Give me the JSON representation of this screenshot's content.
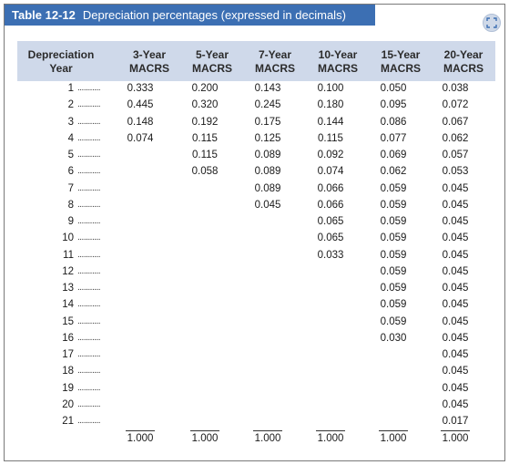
{
  "title": {
    "number": "Table 12-12",
    "text": "Depreciation percentages (expressed in decimals)"
  },
  "zoom_icon": "zoom-expand-icon",
  "columns": {
    "year": [
      "Depreciation",
      "Year"
    ],
    "macrs": [
      [
        "3-Year",
        "MACRS"
      ],
      [
        "5-Year",
        "MACRS"
      ],
      [
        "7-Year",
        "MACRS"
      ],
      [
        "10-Year",
        "MACRS"
      ],
      [
        "15-Year",
        "MACRS"
      ],
      [
        "20-Year",
        "MACRS"
      ]
    ]
  },
  "dots": "...........",
  "rows": [
    {
      "year": "1",
      "values": [
        "0.333",
        "0.200",
        "0.143",
        "0.100",
        "0.050",
        "0.038"
      ]
    },
    {
      "year": "2",
      "values": [
        "0.445",
        "0.320",
        "0.245",
        "0.180",
        "0.095",
        "0.072"
      ]
    },
    {
      "year": "3",
      "values": [
        "0.148",
        "0.192",
        "0.175",
        "0.144",
        "0.086",
        "0.067"
      ]
    },
    {
      "year": "4",
      "values": [
        "0.074",
        "0.115",
        "0.125",
        "0.115",
        "0.077",
        "0.062"
      ]
    },
    {
      "year": "5",
      "values": [
        "",
        "0.115",
        "0.089",
        "0.092",
        "0.069",
        "0.057"
      ]
    },
    {
      "year": "6",
      "values": [
        "",
        "0.058",
        "0.089",
        "0.074",
        "0.062",
        "0.053"
      ]
    },
    {
      "year": "7",
      "values": [
        "",
        "",
        "0.089",
        "0.066",
        "0.059",
        "0.045"
      ]
    },
    {
      "year": "8",
      "values": [
        "",
        "",
        "0.045",
        "0.066",
        "0.059",
        "0.045"
      ]
    },
    {
      "year": "9",
      "values": [
        "",
        "",
        "",
        "0.065",
        "0.059",
        "0.045"
      ]
    },
    {
      "year": "10",
      "values": [
        "",
        "",
        "",
        "0.065",
        "0.059",
        "0.045"
      ]
    },
    {
      "year": "11",
      "values": [
        "",
        "",
        "",
        "0.033",
        "0.059",
        "0.045"
      ]
    },
    {
      "year": "12",
      "values": [
        "",
        "",
        "",
        "",
        "0.059",
        "0.045"
      ]
    },
    {
      "year": "13",
      "values": [
        "",
        "",
        "",
        "",
        "0.059",
        "0.045"
      ]
    },
    {
      "year": "14",
      "values": [
        "",
        "",
        "",
        "",
        "0.059",
        "0.045"
      ]
    },
    {
      "year": "15",
      "values": [
        "",
        "",
        "",
        "",
        "0.059",
        "0.045"
      ]
    },
    {
      "year": "16",
      "values": [
        "",
        "",
        "",
        "",
        "0.030",
        "0.045"
      ]
    },
    {
      "year": "17",
      "values": [
        "",
        "",
        "",
        "",
        "",
        "0.045"
      ]
    },
    {
      "year": "18",
      "values": [
        "",
        "",
        "",
        "",
        "",
        "0.045"
      ]
    },
    {
      "year": "19",
      "values": [
        "",
        "",
        "",
        "",
        "",
        "0.045"
      ]
    },
    {
      "year": "20",
      "values": [
        "",
        "",
        "",
        "",
        "",
        "0.045"
      ]
    },
    {
      "year": "21",
      "values": [
        "",
        "",
        "",
        "",
        "",
        "0.017"
      ]
    }
  ],
  "totals": [
    "1.000",
    "1.000",
    "1.000",
    "1.000",
    "1.000",
    "1.000"
  ],
  "colors": {
    "title_bar": "#3c6fb3",
    "header_bg": "#cfd9ea"
  }
}
